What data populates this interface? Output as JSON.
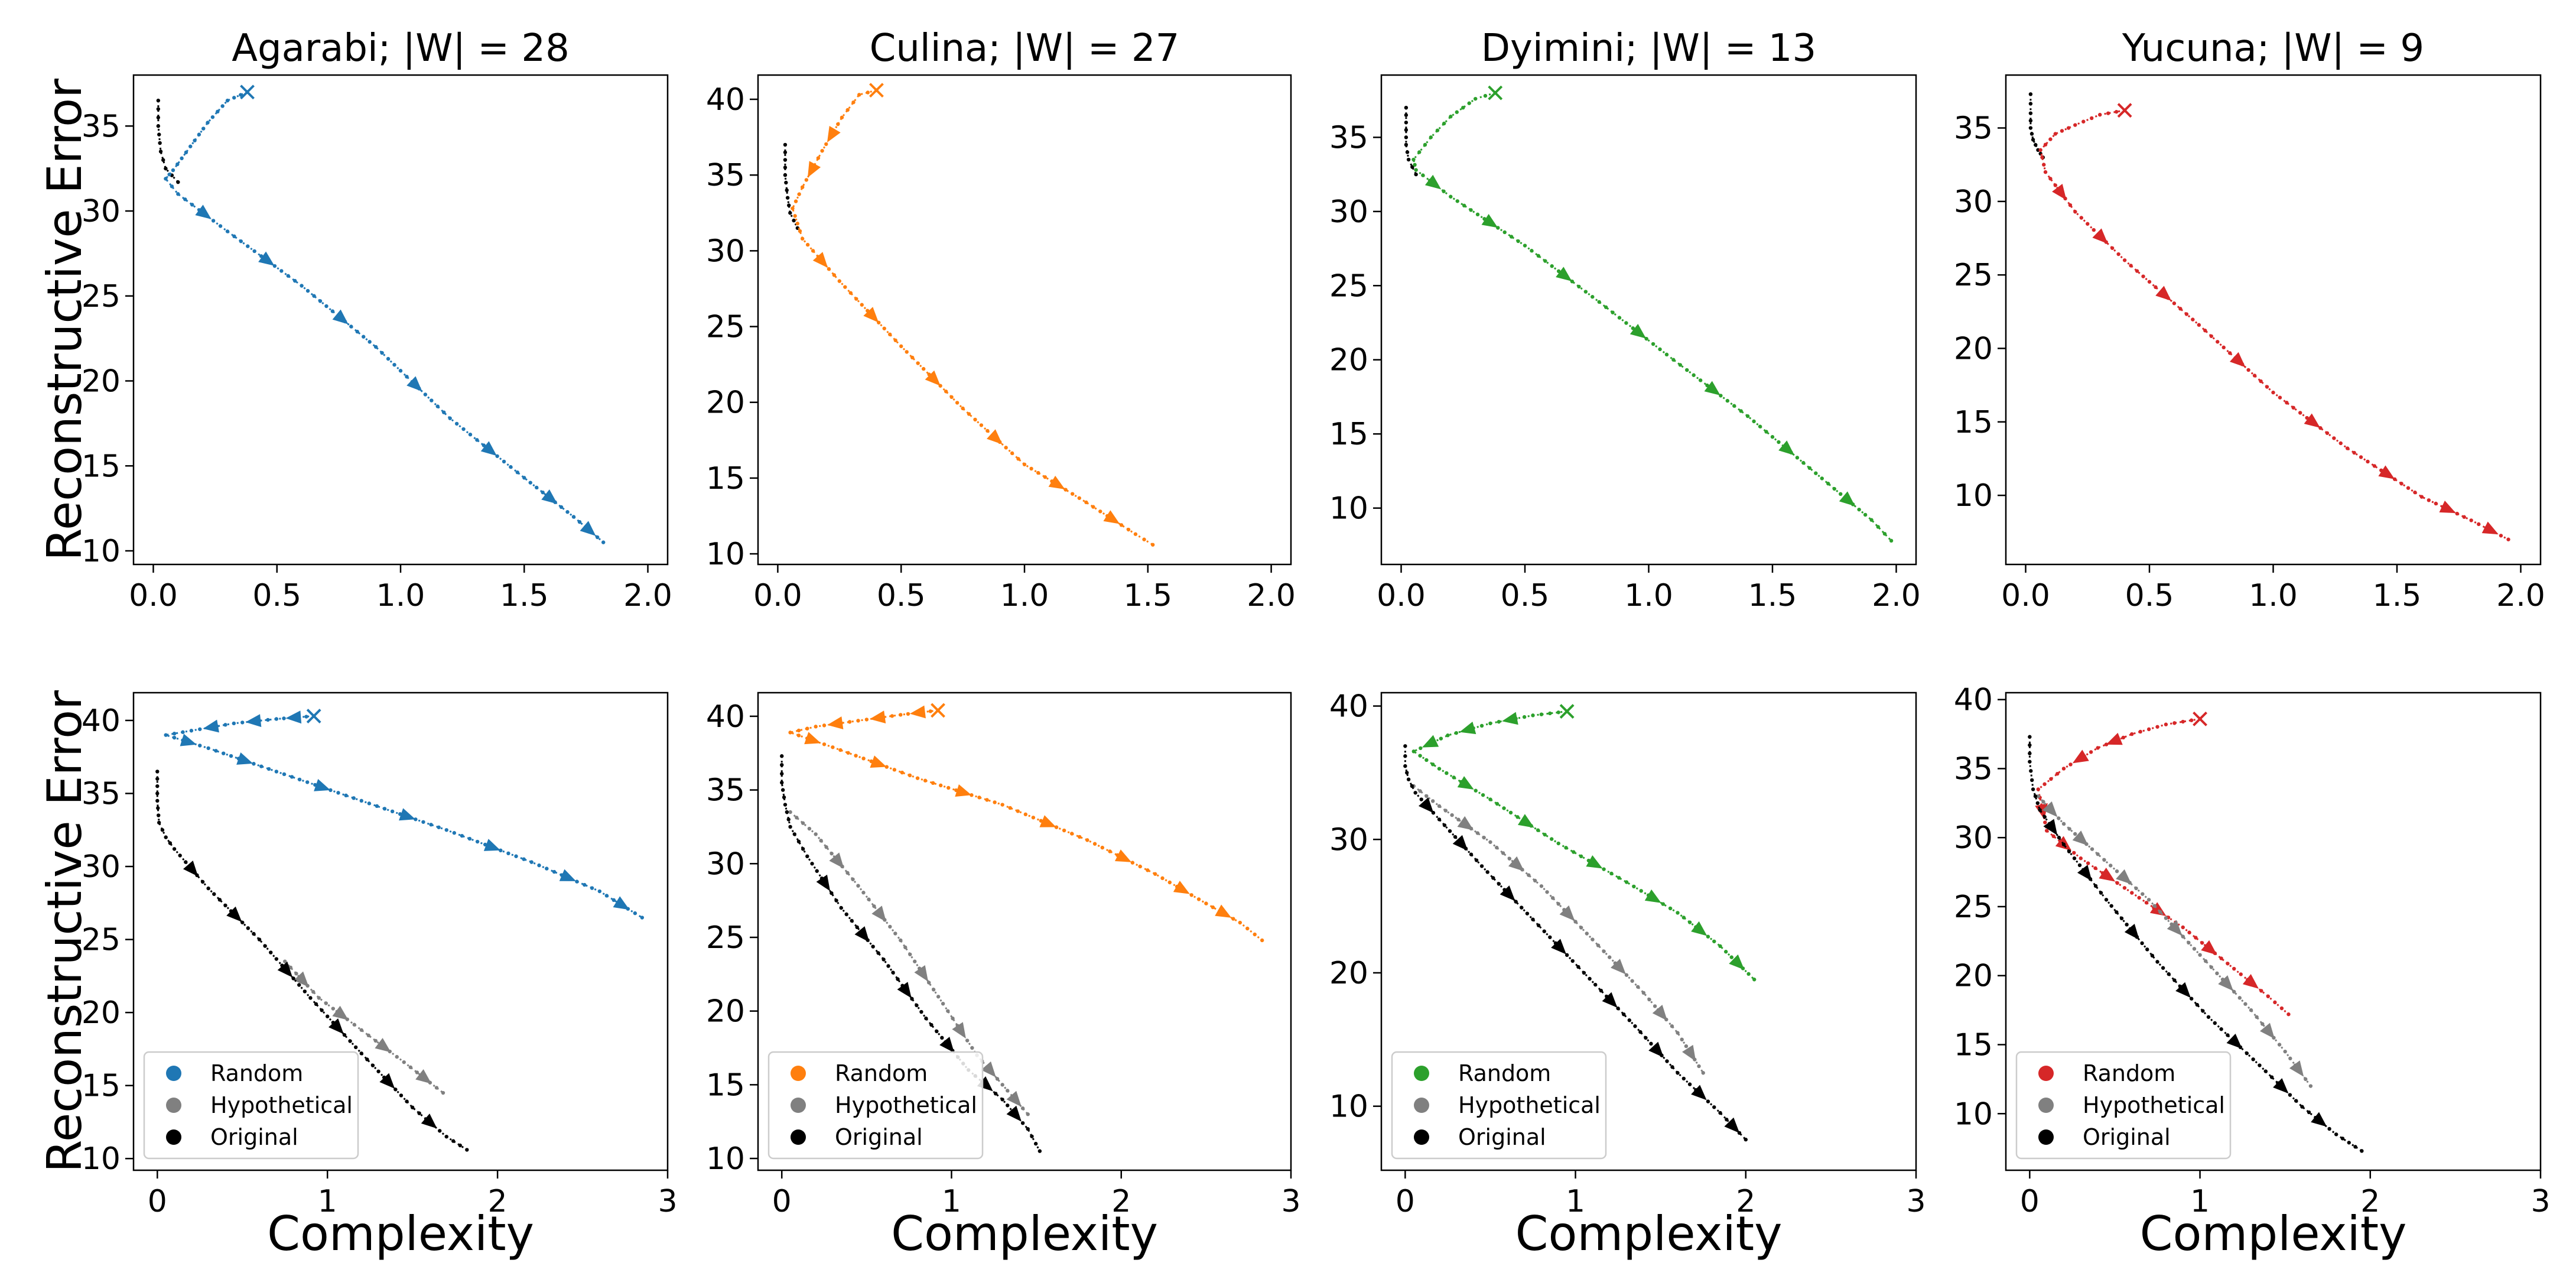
{
  "colors": {
    "Agarabi": "#1f77b4",
    "Culina": "#ff7f0e",
    "Dyimini": "#2ca02c",
    "Yucuna": "#d62728",
    "hypothetical": "#808080",
    "original": "#000000"
  },
  "axis_labels": {
    "ylabel": "Reconstructive Error",
    "xlabel": "Complexity"
  },
  "legend": [
    "Random",
    "Hypothetical",
    "Original"
  ],
  "chart_data": [
    {
      "type": "line",
      "row": 0,
      "col": 0,
      "language": "Agarabi",
      "title": "Agarabi; |W| = 28",
      "ylabel": "Reconstructive Error",
      "xlabel": "",
      "xlim": [
        -0.08,
        2.08
      ],
      "ylim": [
        9.2,
        38.0
      ],
      "xticks": [
        "0.0",
        "0.5",
        "1.0",
        "1.5",
        "2.0"
      ],
      "xtick_values": [
        0,
        0.5,
        1.0,
        1.5,
        2.0
      ],
      "yticks": [
        "10",
        "15",
        "20",
        "25",
        "30",
        "35"
      ],
      "ytick_values": [
        10,
        15,
        20,
        25,
        30,
        35
      ],
      "series": [
        {
          "name": "Original",
          "color": "original",
          "x": [
            0.02,
            0.02,
            0.03,
            0.05,
            0.1
          ],
          "y": [
            36.5,
            35.0,
            33.5,
            32.5,
            31.7
          ]
        },
        {
          "name": "Random",
          "color": "Agarabi",
          "x": [
            0.38,
            0.3,
            0.22,
            0.15,
            0.08,
            0.05,
            0.1,
            0.3,
            0.6,
            0.9,
            1.2,
            1.5,
            1.7,
            1.82
          ],
          "y": [
            37.0,
            36.5,
            35.2,
            33.8,
            32.4,
            31.9,
            31.0,
            28.8,
            25.6,
            22.0,
            17.8,
            14.3,
            12.0,
            10.5
          ],
          "end_marker": "x"
        }
      ]
    },
    {
      "type": "line",
      "row": 0,
      "col": 1,
      "language": "Culina",
      "title": "Culina; |W| = 27",
      "ylabel": "",
      "xlabel": "",
      "xlim": [
        -0.08,
        2.08
      ],
      "ylim": [
        9.3,
        41.6
      ],
      "xticks": [
        "0.0",
        "0.5",
        "1.0",
        "1.5",
        "2.0"
      ],
      "xtick_values": [
        0,
        0.5,
        1.0,
        1.5,
        2.0
      ],
      "yticks": [
        "10",
        "15",
        "20",
        "25",
        "30",
        "35",
        "40"
      ],
      "ytick_values": [
        10,
        15,
        20,
        25,
        30,
        35,
        40
      ],
      "series": [
        {
          "name": "Original",
          "color": "original",
          "x": [
            0.03,
            0.03,
            0.04,
            0.05,
            0.08
          ],
          "y": [
            37.0,
            35.0,
            33.5,
            32.5,
            31.5
          ]
        },
        {
          "name": "Random",
          "color": "Culina",
          "x": [
            0.4,
            0.33,
            0.26,
            0.18,
            0.1,
            0.06,
            0.1,
            0.25,
            0.5,
            0.75,
            1.0,
            1.25,
            1.45,
            1.52
          ],
          "y": [
            40.6,
            40.3,
            38.8,
            36.6,
            34.2,
            32.8,
            30.8,
            28.0,
            23.7,
            19.6,
            15.9,
            13.4,
            11.3,
            10.6
          ],
          "end_marker": "x"
        }
      ]
    },
    {
      "type": "line",
      "row": 0,
      "col": 2,
      "language": "Dyimini",
      "title": "Dyimini; |W| = 13",
      "ylabel": "",
      "xlabel": "",
      "xlim": [
        -0.08,
        2.08
      ],
      "ylim": [
        6.2,
        39.2
      ],
      "xticks": [
        "0.0",
        "0.5",
        "1.0",
        "1.5",
        "2.0"
      ],
      "xtick_values": [
        0,
        0.5,
        1.0,
        1.5,
        2.0
      ],
      "yticks": [
        "10",
        "15",
        "20",
        "25",
        "30",
        "35"
      ],
      "ytick_values": [
        10,
        15,
        20,
        25,
        30,
        35
      ],
      "series": [
        {
          "name": "Original",
          "color": "original",
          "x": [
            0.02,
            0.02,
            0.02,
            0.03,
            0.06
          ],
          "y": [
            37.0,
            35.5,
            34.5,
            33.5,
            32.5
          ]
        },
        {
          "name": "Random",
          "color": "Dyimini",
          "x": [
            0.38,
            0.3,
            0.2,
            0.12,
            0.05,
            0.06,
            0.2,
            0.5,
            0.8,
            1.1,
            1.4,
            1.7,
            1.9,
            1.98
          ],
          "y": [
            38.0,
            37.6,
            36.4,
            35.0,
            33.5,
            32.8,
            31.0,
            27.7,
            23.9,
            20.0,
            16.2,
            12.0,
            9.2,
            7.8
          ],
          "end_marker": "x"
        }
      ]
    },
    {
      "type": "line",
      "row": 0,
      "col": 3,
      "language": "Yucuna",
      "title": "Yucuna; |W| = 9",
      "ylabel": "",
      "xlabel": "",
      "xlim": [
        -0.08,
        2.08
      ],
      "ylim": [
        5.3,
        38.6
      ],
      "xticks": [
        "0.0",
        "0.5",
        "1.0",
        "1.5",
        "2.0"
      ],
      "xtick_values": [
        0,
        0.5,
        1.0,
        1.5,
        2.0
      ],
      "yticks": [
        "10",
        "15",
        "20",
        "25",
        "30",
        "35"
      ],
      "ytick_values": [
        10,
        15,
        20,
        25,
        30,
        35
      ],
      "series": [
        {
          "name": "Original",
          "color": "original",
          "x": [
            0.02,
            0.02,
            0.02,
            0.03,
            0.05,
            0.07
          ],
          "y": [
            37.3,
            36.0,
            35.0,
            34.2,
            33.5,
            33.0
          ]
        },
        {
          "name": "Random",
          "color": "Yucuna",
          "x": [
            0.4,
            0.3,
            0.2,
            0.12,
            0.06,
            0.08,
            0.2,
            0.4,
            0.7,
            1.0,
            1.3,
            1.6,
            1.8,
            1.95
          ],
          "y": [
            36.2,
            35.9,
            35.2,
            34.6,
            33.5,
            32.0,
            29.3,
            26.0,
            21.6,
            17.0,
            13.2,
            9.9,
            8.3,
            7.0
          ],
          "end_marker": "x"
        }
      ]
    },
    {
      "type": "line",
      "row": 1,
      "col": 0,
      "language": "Agarabi",
      "title": "",
      "ylabel": "Reconstructive Error",
      "xlabel": "Complexity",
      "xlim": [
        -0.14,
        3.0
      ],
      "ylim": [
        9.2,
        41.9
      ],
      "xticks": [
        "0",
        "1",
        "2",
        "3"
      ],
      "xtick_values": [
        0,
        1,
        2,
        3
      ],
      "yticks": [
        "10",
        "15",
        "20",
        "25",
        "30",
        "35",
        "40"
      ],
      "ytick_values": [
        10,
        15,
        20,
        25,
        30,
        35,
        40
      ],
      "series": [
        {
          "name": "Random",
          "color": "Agarabi",
          "x": [
            0.92,
            0.7,
            0.45,
            0.2,
            0.05,
            0.3,
            0.7,
            1.2,
            1.7,
            2.2,
            2.6,
            2.85
          ],
          "y": [
            40.3,
            40.1,
            39.8,
            39.3,
            39.0,
            38.1,
            36.5,
            34.5,
            32.5,
            30.3,
            28.3,
            26.5
          ],
          "end_marker": "x"
        },
        {
          "name": "Hypothetical",
          "color": "hypothetical",
          "x": [
            0.75,
            0.95,
            1.2,
            1.45,
            1.68
          ],
          "y": [
            23.5,
            21.0,
            18.8,
            16.6,
            14.5
          ]
        },
        {
          "name": "Original",
          "color": "original",
          "x": [
            0.0,
            0.0,
            0.01,
            0.05,
            0.1,
            0.3,
            0.6,
            0.9,
            1.2,
            1.5,
            1.7,
            1.82
          ],
          "y": [
            36.5,
            34.5,
            33.0,
            32.0,
            31.2,
            28.5,
            25.0,
            21.0,
            17.2,
            13.5,
            11.5,
            10.6
          ]
        }
      ]
    },
    {
      "type": "line",
      "row": 1,
      "col": 1,
      "language": "Culina",
      "title": "",
      "ylabel": "",
      "xlabel": "Complexity",
      "xlim": [
        -0.14,
        3.0
      ],
      "ylim": [
        9.2,
        41.6
      ],
      "xticks": [
        "0",
        "1",
        "2",
        "3"
      ],
      "xtick_values": [
        0,
        1,
        2,
        3
      ],
      "yticks": [
        "10",
        "15",
        "20",
        "25",
        "30",
        "35",
        "40"
      ],
      "ytick_values": [
        10,
        15,
        20,
        25,
        30,
        35,
        40
      ],
      "series": [
        {
          "name": "Random",
          "color": "Culina",
          "x": [
            0.92,
            0.7,
            0.45,
            0.2,
            0.05,
            0.3,
            0.8,
            1.3,
            1.8,
            2.2,
            2.5,
            2.7,
            2.83
          ],
          "y": [
            40.4,
            40.1,
            39.7,
            39.3,
            38.9,
            37.9,
            35.8,
            34.0,
            31.6,
            29.3,
            27.3,
            26.0,
            24.8
          ],
          "end_marker": "x"
        },
        {
          "name": "Hypothetical",
          "color": "hypothetical",
          "x": [
            0.05,
            0.2,
            0.45,
            0.7,
            0.95,
            1.15,
            1.3,
            1.45
          ],
          "y": [
            33.5,
            32.0,
            28.5,
            24.8,
            20.5,
            17.0,
            15.0,
            13.0
          ]
        },
        {
          "name": "Original",
          "color": "original",
          "x": [
            0.0,
            0.0,
            0.02,
            0.05,
            0.15,
            0.35,
            0.6,
            0.85,
            1.1,
            1.3,
            1.45,
            1.52
          ],
          "y": [
            37.3,
            35.5,
            34.0,
            32.5,
            30.5,
            27.0,
            23.5,
            19.5,
            16.0,
            14.0,
            12.0,
            10.5
          ]
        }
      ]
    },
    {
      "type": "line",
      "row": 1,
      "col": 2,
      "language": "Dyimini",
      "title": "",
      "ylabel": "",
      "xlabel": "Complexity",
      "xlim": [
        -0.14,
        3.0
      ],
      "ylim": [
        5.2,
        41.0
      ],
      "xticks": [
        "0",
        "1",
        "2",
        "3"
      ],
      "xtick_values": [
        0,
        1,
        2,
        3
      ],
      "yticks": [
        "10",
        "20",
        "30",
        "40"
      ],
      "ytick_values": [
        10,
        20,
        30,
        40
      ],
      "series": [
        {
          "name": "Random",
          "color": "Dyimini",
          "x": [
            0.95,
            0.75,
            0.5,
            0.25,
            0.05,
            0.2,
            0.5,
            0.9,
            1.3,
            1.6,
            1.85,
            2.05
          ],
          "y": [
            39.6,
            39.3,
            38.7,
            37.8,
            36.6,
            35.3,
            33.0,
            29.7,
            26.8,
            24.5,
            22.0,
            19.5
          ],
          "end_marker": "x"
        },
        {
          "name": "Hypothetical",
          "color": "hypothetical",
          "x": [
            0.05,
            0.2,
            0.5,
            0.8,
            1.1,
            1.4,
            1.6,
            1.75
          ],
          "y": [
            34.0,
            32.5,
            29.8,
            26.5,
            22.5,
            18.5,
            15.5,
            12.5
          ]
        },
        {
          "name": "Original",
          "color": "original",
          "x": [
            0.0,
            0.0,
            0.02,
            0.06,
            0.2,
            0.45,
            0.75,
            1.05,
            1.35,
            1.6,
            1.85,
            2.0
          ],
          "y": [
            37.0,
            35.5,
            34.5,
            33.5,
            31.5,
            28.0,
            24.0,
            20.0,
            16.0,
            12.5,
            9.5,
            7.5
          ]
        }
      ]
    },
    {
      "type": "line",
      "row": 1,
      "col": 3,
      "language": "Yucuna",
      "title": "",
      "ylabel": "",
      "xlabel": "Complexity",
      "xlim": [
        -0.14,
        3.0
      ],
      "ylim": [
        5.9,
        40.5
      ],
      "xticks": [
        "0",
        "1",
        "2",
        "3"
      ],
      "xtick_values": [
        0,
        1,
        2,
        3
      ],
      "yticks": [
        "10",
        "15",
        "20",
        "25",
        "30",
        "35",
        "40"
      ],
      "ytick_values": [
        10,
        15,
        20,
        25,
        30,
        35,
        40
      ],
      "series": [
        {
          "name": "Random",
          "color": "Yucuna",
          "x": [
            1.0,
            0.8,
            0.6,
            0.4,
            0.2,
            0.05,
            0.1,
            0.3,
            0.6,
            0.9,
            1.2,
            1.4,
            1.52
          ],
          "y": [
            38.6,
            38.2,
            37.5,
            36.5,
            35.0,
            33.5,
            30.5,
            28.5,
            26.0,
            23.5,
            20.5,
            18.5,
            17.2
          ],
          "end_marker": "x"
        },
        {
          "name": "Hypothetical",
          "color": "hypothetical",
          "x": [
            0.05,
            0.2,
            0.4,
            0.7,
            1.0,
            1.3,
            1.5,
            1.65
          ],
          "y": [
            33.0,
            31.0,
            28.8,
            25.5,
            21.5,
            17.5,
            14.5,
            12.0
          ]
        },
        {
          "name": "Original",
          "color": "original",
          "x": [
            0.0,
            0.0,
            0.02,
            0.06,
            0.2,
            0.45,
            0.75,
            1.05,
            1.35,
            1.6,
            1.8,
            1.95
          ],
          "y": [
            37.3,
            35.5,
            33.5,
            32.0,
            29.5,
            25.5,
            21.0,
            17.0,
            13.5,
            10.5,
            8.5,
            7.3
          ]
        }
      ]
    }
  ]
}
